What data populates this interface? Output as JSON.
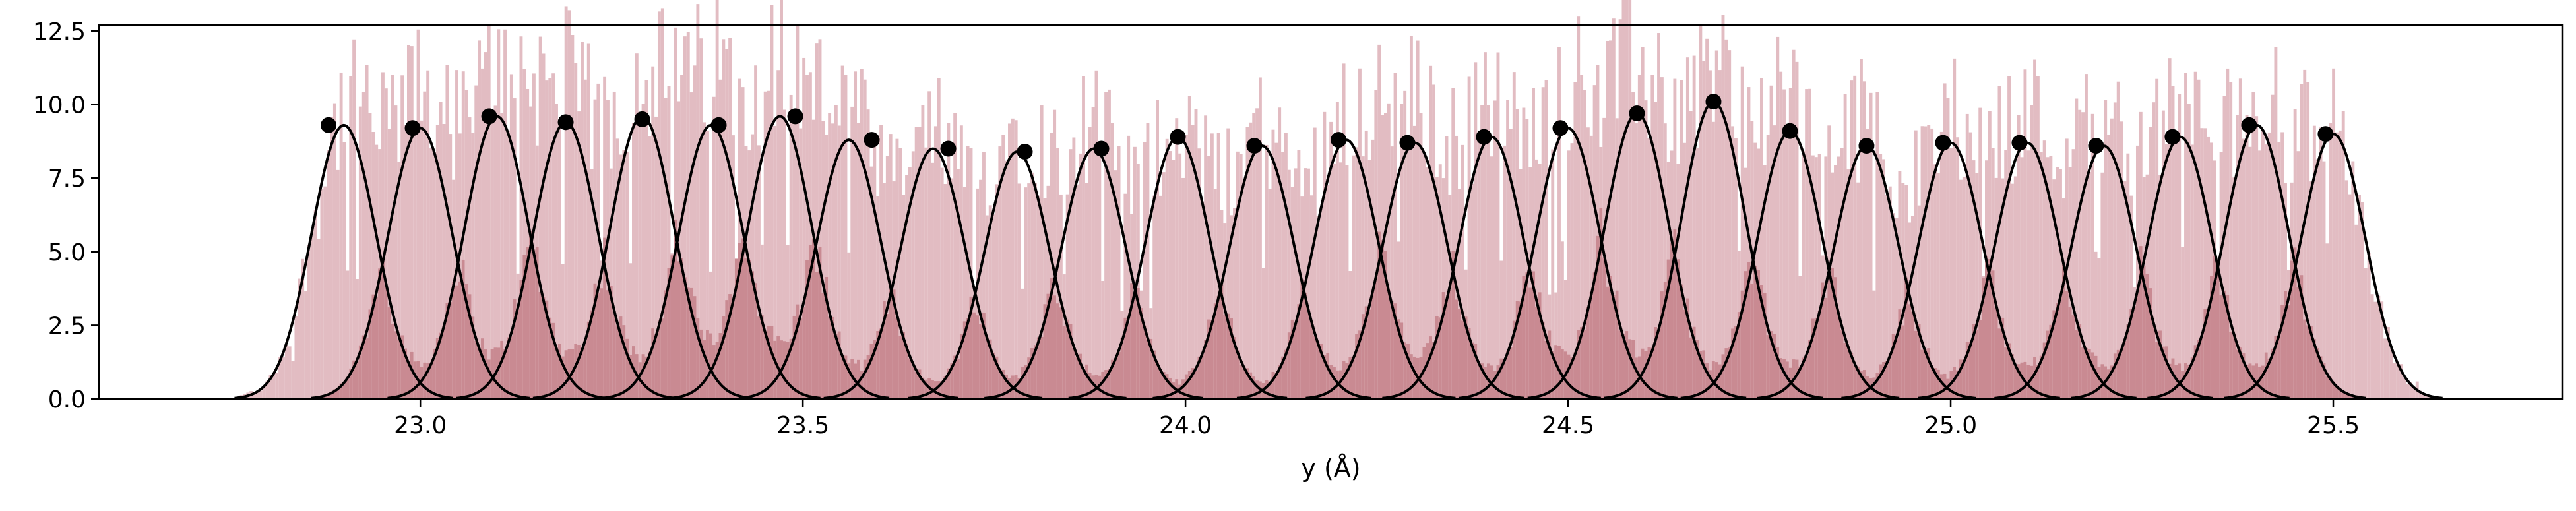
{
  "chart_data": {
    "type": "histogram-with-gaussian-fits",
    "xlabel": "y (Å)",
    "ylabel": "",
    "title": "",
    "xlim": [
      22.58,
      25.8
    ],
    "ylim": [
      0,
      12.7
    ],
    "x_ticks": [
      23.0,
      23.5,
      24.0,
      24.5,
      25.0,
      25.5
    ],
    "x_tick_labels": [
      "23.0",
      "23.5",
      "24.0",
      "24.5",
      "25.0",
      "25.5"
    ],
    "y_ticks": [
      0,
      2.5,
      5.0,
      7.5,
      10.0,
      12.5
    ],
    "y_tick_labels": [
      "0.0",
      "2.5",
      "5.0",
      "7.5",
      "10.0",
      "12.5"
    ],
    "grid": false,
    "colors": {
      "histogram_light": "#e2bcc2",
      "histogram_dark": "#c98a92",
      "fit_curve": "#000000",
      "peak_marker": "#000000"
    },
    "sigma": 0.042,
    "peaks": [
      {
        "center": 22.9,
        "height": 9.3
      },
      {
        "center": 23.0,
        "height": 9.2
      },
      {
        "center": 23.1,
        "height": 9.6
      },
      {
        "center": 23.19,
        "height": 9.4
      },
      {
        "center": 23.29,
        "height": 9.6
      },
      {
        "center": 23.38,
        "height": 9.3
      },
      {
        "center": 23.47,
        "height": 9.6
      },
      {
        "center": 23.56,
        "height": 8.8
      },
      {
        "center": 23.67,
        "height": 8.5
      },
      {
        "center": 23.78,
        "height": 8.4
      },
      {
        "center": 23.88,
        "height": 8.5
      },
      {
        "center": 23.99,
        "height": 8.9
      },
      {
        "center": 24.1,
        "height": 8.6
      },
      {
        "center": 24.21,
        "height": 8.8
      },
      {
        "center": 24.3,
        "height": 8.7
      },
      {
        "center": 24.4,
        "height": 8.9
      },
      {
        "center": 24.5,
        "height": 9.2
      },
      {
        "center": 24.59,
        "height": 9.7
      },
      {
        "center": 24.69,
        "height": 10.1
      },
      {
        "center": 24.79,
        "height": 9.1
      },
      {
        "center": 24.89,
        "height": 8.6
      },
      {
        "center": 25.0,
        "height": 8.7
      },
      {
        "center": 25.1,
        "height": 8.7
      },
      {
        "center": 25.2,
        "height": 8.6
      },
      {
        "center": 25.3,
        "height": 8.9
      },
      {
        "center": 25.4,
        "height": 9.3
      },
      {
        "center": 25.5,
        "height": 9.0
      }
    ],
    "markers": [
      {
        "x": 22.88,
        "y": 9.3
      },
      {
        "x": 22.99,
        "y": 9.2
      },
      {
        "x": 23.09,
        "y": 9.6
      },
      {
        "x": 23.19,
        "y": 9.4
      },
      {
        "x": 23.29,
        "y": 9.5
      },
      {
        "x": 23.39,
        "y": 9.3
      },
      {
        "x": 23.49,
        "y": 9.6
      },
      {
        "x": 23.59,
        "y": 8.8
      },
      {
        "x": 23.69,
        "y": 8.5
      },
      {
        "x": 23.79,
        "y": 8.4
      },
      {
        "x": 23.89,
        "y": 8.5
      },
      {
        "x": 23.99,
        "y": 8.9
      },
      {
        "x": 24.09,
        "y": 8.6
      },
      {
        "x": 24.2,
        "y": 8.8
      },
      {
        "x": 24.29,
        "y": 8.7
      },
      {
        "x": 24.39,
        "y": 8.9
      },
      {
        "x": 24.49,
        "y": 9.2
      },
      {
        "x": 24.59,
        "y": 9.7
      },
      {
        "x": 24.69,
        "y": 10.1
      },
      {
        "x": 24.79,
        "y": 9.1
      },
      {
        "x": 24.89,
        "y": 8.6
      },
      {
        "x": 24.99,
        "y": 8.7
      },
      {
        "x": 25.09,
        "y": 8.7
      },
      {
        "x": 25.19,
        "y": 8.6
      },
      {
        "x": 25.29,
        "y": 8.9
      },
      {
        "x": 25.39,
        "y": 9.3
      },
      {
        "x": 25.49,
        "y": 9.0
      }
    ]
  }
}
